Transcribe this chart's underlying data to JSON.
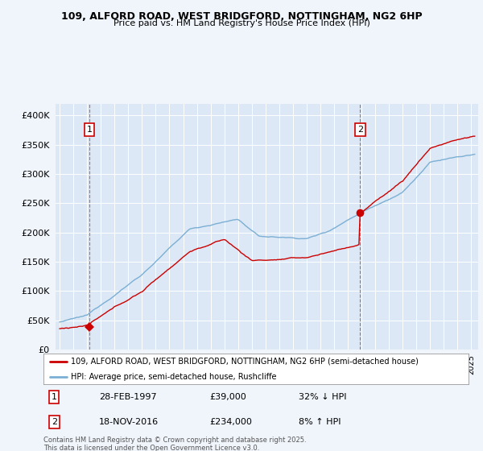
{
  "title1": "109, ALFORD ROAD, WEST BRIDGFORD, NOTTINGHAM, NG2 6HP",
  "title2": "Price paid vs. HM Land Registry's House Price Index (HPI)",
  "bg_color": "#f0f4fb",
  "plot_bg_color": "#dce8f5",
  "line1_color": "#cc0000",
  "line2_color": "#7bafd4",
  "grid_color": "#ffffff",
  "sale1": {
    "date_num": 1997.16,
    "price": 39000
  },
  "sale2": {
    "date_num": 2016.89,
    "price": 234000
  },
  "yticks": [
    0,
    50000,
    100000,
    150000,
    200000,
    250000,
    300000,
    350000,
    400000
  ],
  "ylim": [
    0,
    420000
  ],
  "xlim_start": 1994.7,
  "xlim_end": 2025.5,
  "legend_line1": "109, ALFORD ROAD, WEST BRIDGFORD, NOTTINGHAM, NG2 6HP (semi-detached house)",
  "legend_line2": "HPI: Average price, semi-detached house, Rushcliffe",
  "annotation1_label": "1",
  "annotation1_date": "28-FEB-1997",
  "annotation1_price": "£39,000",
  "annotation1_hpi": "32% ↓ HPI",
  "annotation2_label": "2",
  "annotation2_date": "18-NOV-2016",
  "annotation2_price": "£234,000",
  "annotation2_hpi": "8% ↑ HPI",
  "footer": "Contains HM Land Registry data © Crown copyright and database right 2025.\nThis data is licensed under the Open Government Licence v3.0."
}
